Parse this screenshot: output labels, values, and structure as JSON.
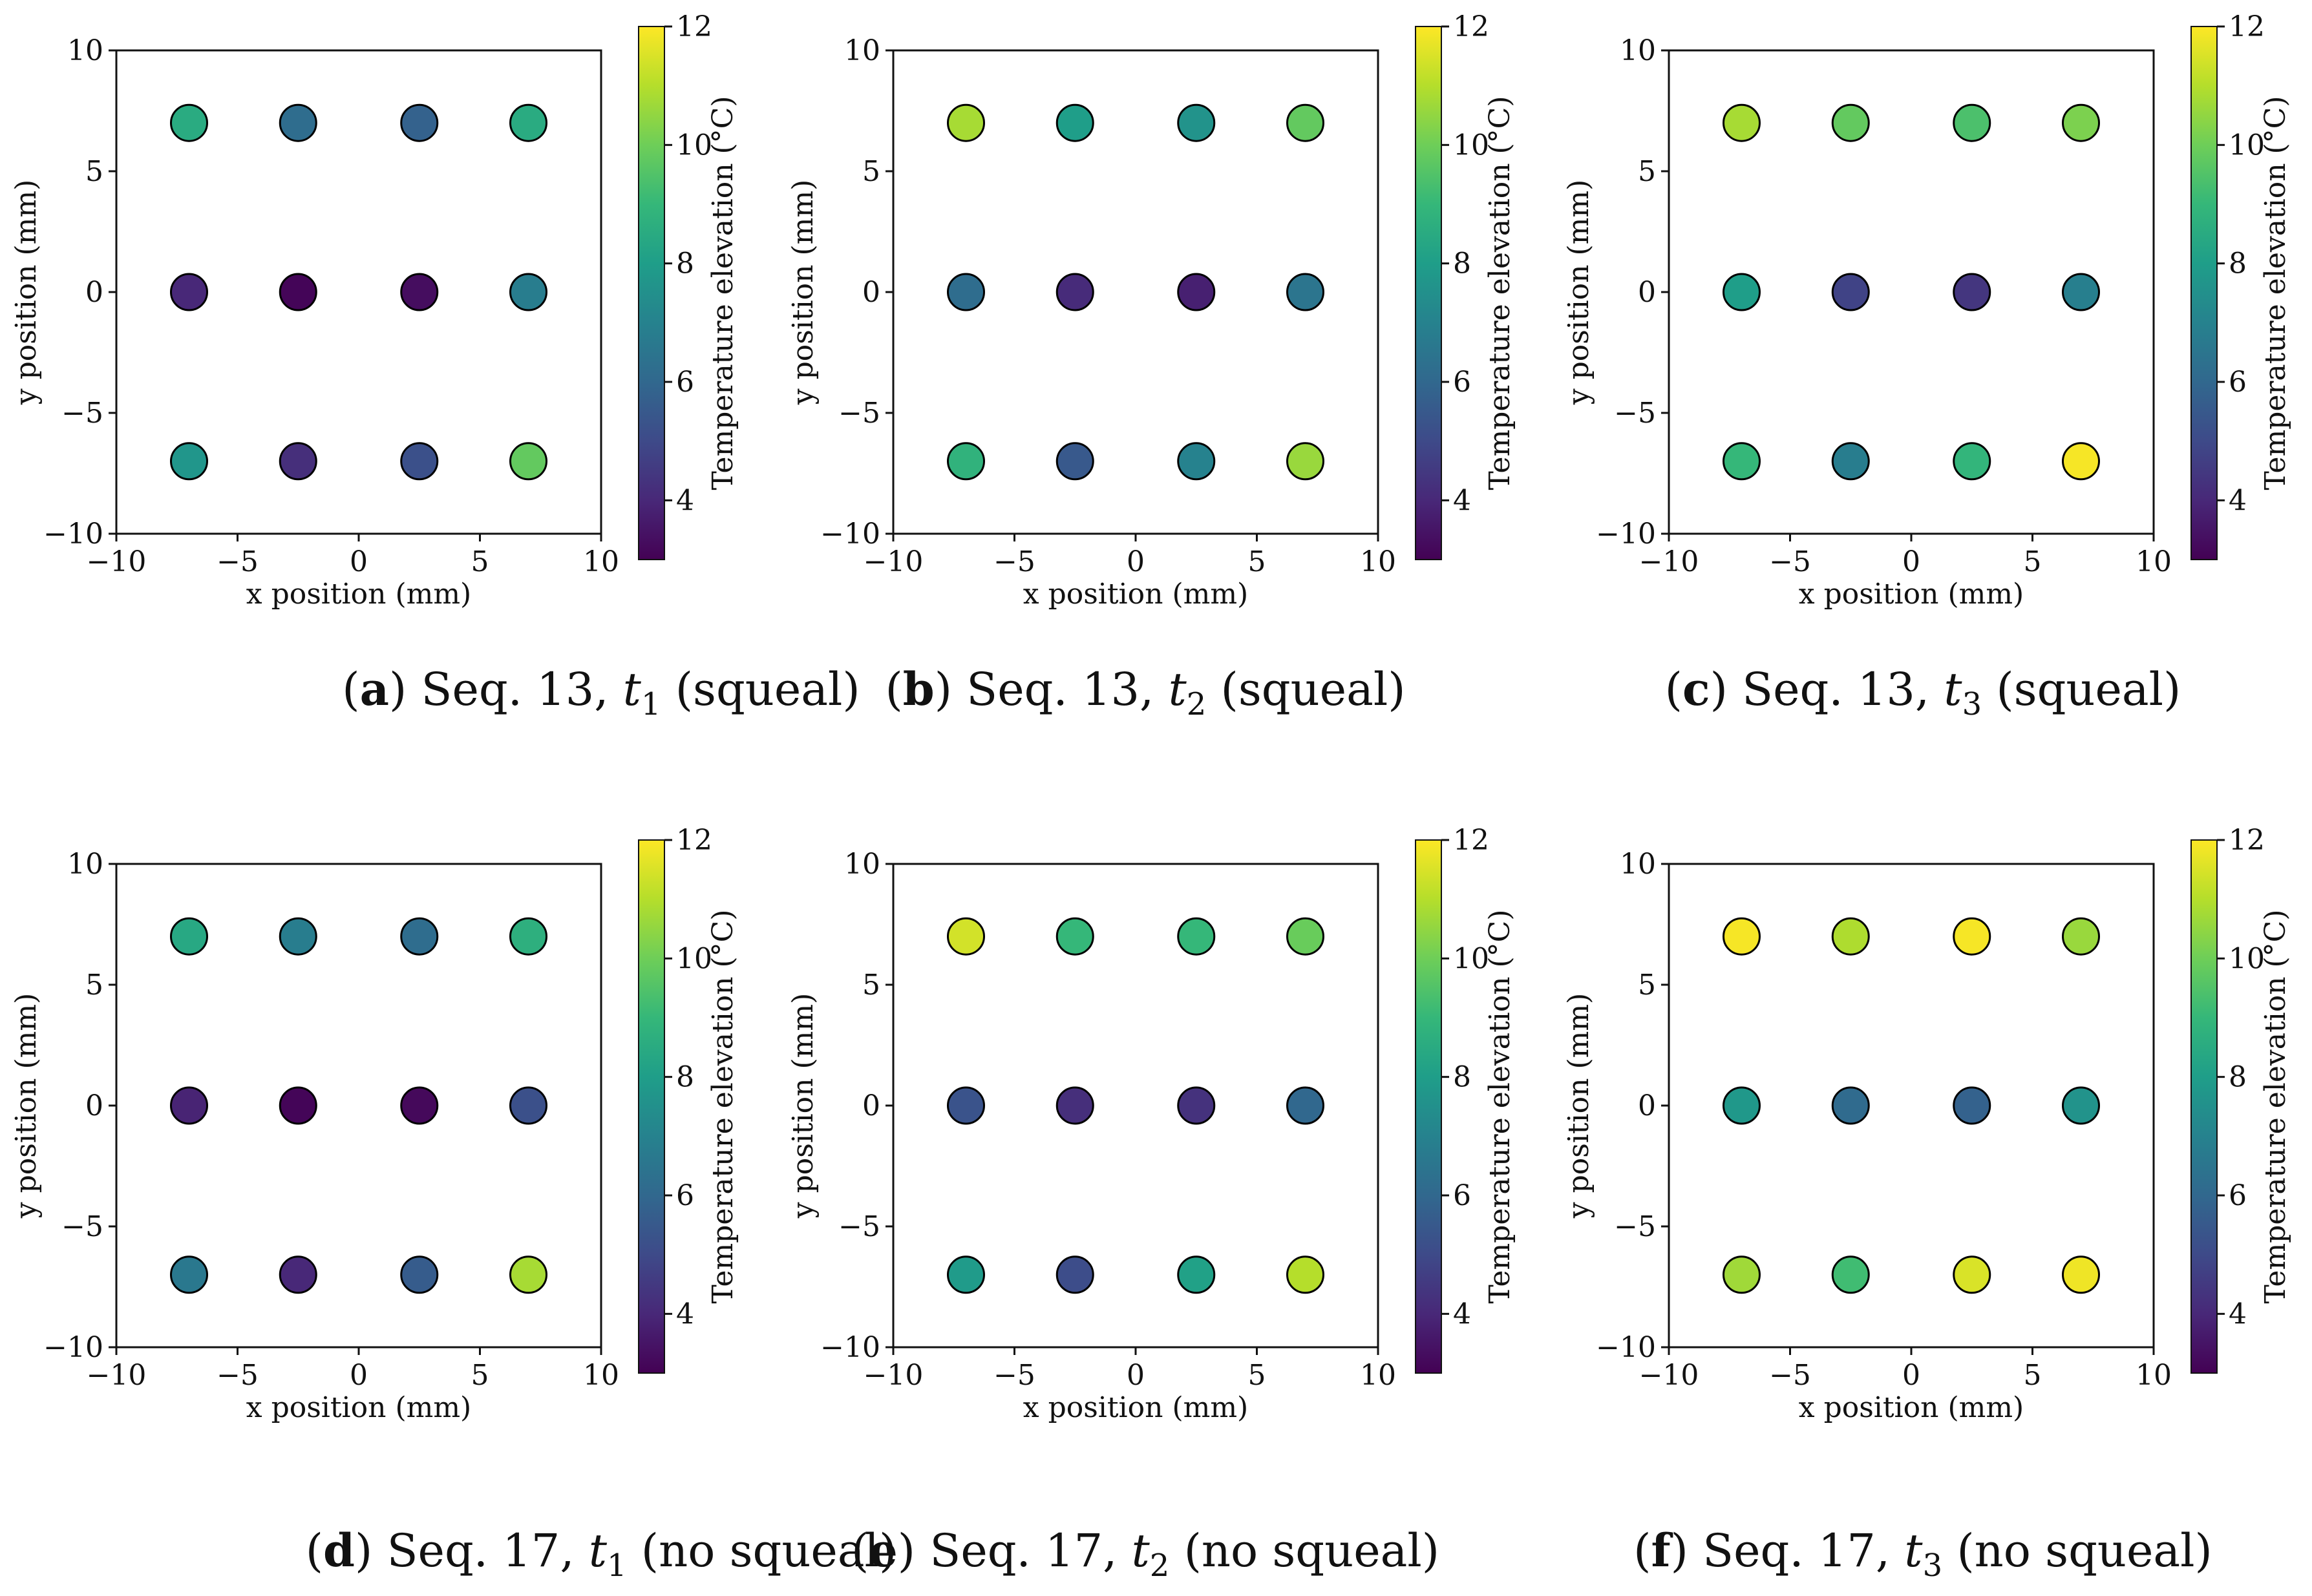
{
  "figure": {
    "xlabel": "x position (mm)",
    "ylabel": "y position (mm)",
    "colorbar_label": "Temperature elevation (°C)",
    "colorbar_ticks": [
      "4",
      "6",
      "8",
      "10",
      "12"
    ],
    "colormap": [
      "#440154",
      "#482878",
      "#3e4a89",
      "#31688e",
      "#26828e",
      "#1f9e89",
      "#35b779",
      "#6ece58",
      "#b5de2b",
      "#fde725"
    ]
  },
  "chart_data": [
    {
      "type": "scatter",
      "panel": "a",
      "caption": {
        "letter": "a",
        "text1": "Seq. 13,",
        "var": "t",
        "sub": "1",
        "text2": "(squeal)"
      },
      "xlabel": "x position (mm)",
      "ylabel": "y position (mm)",
      "xlim": [
        -10,
        10
      ],
      "ylim": [
        -10,
        10
      ],
      "xticks": [
        -10,
        -5,
        0,
        5,
        10
      ],
      "yticks": [
        -10,
        -5,
        0,
        5,
        10
      ],
      "color_label": "Temperature elevation (°C)",
      "clim": [
        3,
        12
      ],
      "points": [
        {
          "x": -7,
          "y": 7,
          "t": 8.5
        },
        {
          "x": -2.5,
          "y": 7,
          "t": 6.2
        },
        {
          "x": 2.5,
          "y": 7,
          "t": 5.8
        },
        {
          "x": 7,
          "y": 7,
          "t": 8.5
        },
        {
          "x": -7,
          "y": 0,
          "t": 4.0
        },
        {
          "x": -2.5,
          "y": 0,
          "t": 3.1
        },
        {
          "x": 2.5,
          "y": 0,
          "t": 3.3
        },
        {
          "x": 7,
          "y": 0,
          "t": 6.8
        },
        {
          "x": -7,
          "y": -7,
          "t": 7.7
        },
        {
          "x": -2.5,
          "y": -7,
          "t": 4.2
        },
        {
          "x": 2.5,
          "y": -7,
          "t": 5.2
        },
        {
          "x": 7,
          "y": -7,
          "t": 9.8
        }
      ]
    },
    {
      "type": "scatter",
      "panel": "b",
      "caption": {
        "letter": "b",
        "text1": "Seq. 13,",
        "var": "t",
        "sub": "2",
        "text2": "(squeal)"
      },
      "xlabel": "x position (mm)",
      "ylabel": "y position (mm)",
      "xlim": [
        -10,
        10
      ],
      "ylim": [
        -10,
        10
      ],
      "xticks": [
        -10,
        -5,
        0,
        5,
        10
      ],
      "yticks": [
        -10,
        -5,
        0,
        5,
        10
      ],
      "color_label": "Temperature elevation (°C)",
      "clim": [
        3,
        12
      ],
      "points": [
        {
          "x": -7,
          "y": 7,
          "t": 10.8
        },
        {
          "x": -2.5,
          "y": 7,
          "t": 8.0
        },
        {
          "x": 2.5,
          "y": 7,
          "t": 7.6
        },
        {
          "x": 7,
          "y": 7,
          "t": 9.8
        },
        {
          "x": -7,
          "y": 0,
          "t": 6.2
        },
        {
          "x": -2.5,
          "y": 0,
          "t": 4.1
        },
        {
          "x": 2.5,
          "y": 0,
          "t": 3.8
        },
        {
          "x": 7,
          "y": 0,
          "t": 6.5
        },
        {
          "x": -7,
          "y": -7,
          "t": 8.8
        },
        {
          "x": -2.5,
          "y": -7,
          "t": 5.5
        },
        {
          "x": 2.5,
          "y": -7,
          "t": 7.0
        },
        {
          "x": 7,
          "y": -7,
          "t": 10.6
        }
      ]
    },
    {
      "type": "scatter",
      "panel": "c",
      "caption": {
        "letter": "c",
        "text1": "Seq. 13,",
        "var": "t",
        "sub": "3",
        "text2": "(squeal)"
      },
      "xlabel": "x position (mm)",
      "ylabel": "y position (mm)",
      "xlim": [
        -10,
        10
      ],
      "ylim": [
        -10,
        10
      ],
      "xticks": [
        -10,
        -5,
        0,
        5,
        10
      ],
      "yticks": [
        -10,
        -5,
        0,
        5,
        10
      ],
      "color_label": "Temperature elevation (°C)",
      "clim": [
        3,
        12
      ],
      "points": [
        {
          "x": -7,
          "y": 7,
          "t": 10.8
        },
        {
          "x": -2.5,
          "y": 7,
          "t": 9.8
        },
        {
          "x": 2.5,
          "y": 7,
          "t": 9.4
        },
        {
          "x": 7,
          "y": 7,
          "t": 10.2
        },
        {
          "x": -7,
          "y": 0,
          "t": 8.0
        },
        {
          "x": -2.5,
          "y": 0,
          "t": 4.8
        },
        {
          "x": 2.5,
          "y": 0,
          "t": 4.4
        },
        {
          "x": 7,
          "y": 0,
          "t": 6.9
        },
        {
          "x": -7,
          "y": -7,
          "t": 9.0
        },
        {
          "x": -2.5,
          "y": -7,
          "t": 6.8
        },
        {
          "x": 2.5,
          "y": -7,
          "t": 8.9
        },
        {
          "x": 7,
          "y": -7,
          "t": 11.9
        }
      ]
    },
    {
      "type": "scatter",
      "panel": "d",
      "caption": {
        "letter": "d",
        "text1": "Seq. 17,",
        "var": "t",
        "sub": "1",
        "text2": "(no squeal)"
      },
      "xlabel": "x position (mm)",
      "ylabel": "y position (mm)",
      "xlim": [
        -10,
        10
      ],
      "ylim": [
        -10,
        10
      ],
      "xticks": [
        -10,
        -5,
        0,
        5,
        10
      ],
      "yticks": [
        -10,
        -5,
        0,
        5,
        10
      ],
      "color_label": "Temperature elevation (°C)",
      "clim": [
        3,
        12
      ],
      "points": [
        {
          "x": -7,
          "y": 7,
          "t": 8.4
        },
        {
          "x": -2.5,
          "y": 7,
          "t": 6.8
        },
        {
          "x": 2.5,
          "y": 7,
          "t": 6.2
        },
        {
          "x": 7,
          "y": 7,
          "t": 8.7
        },
        {
          "x": -7,
          "y": 0,
          "t": 3.9
        },
        {
          "x": -2.5,
          "y": 0,
          "t": 3.1
        },
        {
          "x": 2.5,
          "y": 0,
          "t": 3.2
        },
        {
          "x": 7,
          "y": 0,
          "t": 5.2
        },
        {
          "x": -7,
          "y": -7,
          "t": 6.6
        },
        {
          "x": -2.5,
          "y": -7,
          "t": 4.0
        },
        {
          "x": 2.5,
          "y": -7,
          "t": 5.6
        },
        {
          "x": 7,
          "y": -7,
          "t": 10.8
        }
      ]
    },
    {
      "type": "scatter",
      "panel": "e",
      "caption": {
        "letter": "e",
        "text1": "Seq. 17,",
        "var": "t",
        "sub": "2",
        "text2": "(no squeal)"
      },
      "xlabel": "x position (mm)",
      "ylabel": "y position (mm)",
      "xlim": [
        -10,
        10
      ],
      "ylim": [
        -10,
        10
      ],
      "xticks": [
        -10,
        -5,
        0,
        5,
        10
      ],
      "yticks": [
        -10,
        -5,
        0,
        5,
        10
      ],
      "color_label": "Temperature elevation (°C)",
      "clim": [
        3,
        12
      ],
      "points": [
        {
          "x": -7,
          "y": 7,
          "t": 11.4
        },
        {
          "x": -2.5,
          "y": 7,
          "t": 9.0
        },
        {
          "x": 2.5,
          "y": 7,
          "t": 9.0
        },
        {
          "x": 7,
          "y": 7,
          "t": 9.9
        },
        {
          "x": -7,
          "y": 0,
          "t": 5.3
        },
        {
          "x": -2.5,
          "y": 0,
          "t": 4.2
        },
        {
          "x": 2.5,
          "y": 0,
          "t": 4.3
        },
        {
          "x": 7,
          "y": 0,
          "t": 6.0
        },
        {
          "x": -7,
          "y": -7,
          "t": 7.9
        },
        {
          "x": -2.5,
          "y": -7,
          "t": 5.1
        },
        {
          "x": 2.5,
          "y": -7,
          "t": 8.1
        },
        {
          "x": 7,
          "y": -7,
          "t": 11.0
        }
      ]
    },
    {
      "type": "scatter",
      "panel": "f",
      "caption": {
        "letter": "f",
        "text1": "Seq. 17,",
        "var": "t",
        "sub": "3",
        "text2": "(no squeal)"
      },
      "xlabel": "x position (mm)",
      "ylabel": "y position (mm)",
      "xlim": [
        -10,
        10
      ],
      "ylim": [
        -10,
        10
      ],
      "xticks": [
        -10,
        -5,
        0,
        5,
        10
      ],
      "yticks": [
        -10,
        -5,
        0,
        5,
        10
      ],
      "color_label": "Temperature elevation (°C)",
      "clim": [
        3,
        12
      ],
      "points": [
        {
          "x": -7,
          "y": 7,
          "t": 11.9
        },
        {
          "x": -2.5,
          "y": 7,
          "t": 10.9
        },
        {
          "x": 2.5,
          "y": 7,
          "t": 11.9
        },
        {
          "x": 7,
          "y": 7,
          "t": 10.6
        },
        {
          "x": -7,
          "y": 0,
          "t": 7.8
        },
        {
          "x": -2.5,
          "y": 0,
          "t": 6.1
        },
        {
          "x": 2.5,
          "y": 0,
          "t": 5.8
        },
        {
          "x": 7,
          "y": 0,
          "t": 7.6
        },
        {
          "x": -7,
          "y": -7,
          "t": 10.7
        },
        {
          "x": -2.5,
          "y": -7,
          "t": 9.2
        },
        {
          "x": 2.5,
          "y": -7,
          "t": 11.5
        },
        {
          "x": 7,
          "y": -7,
          "t": 11.8
        }
      ]
    }
  ]
}
